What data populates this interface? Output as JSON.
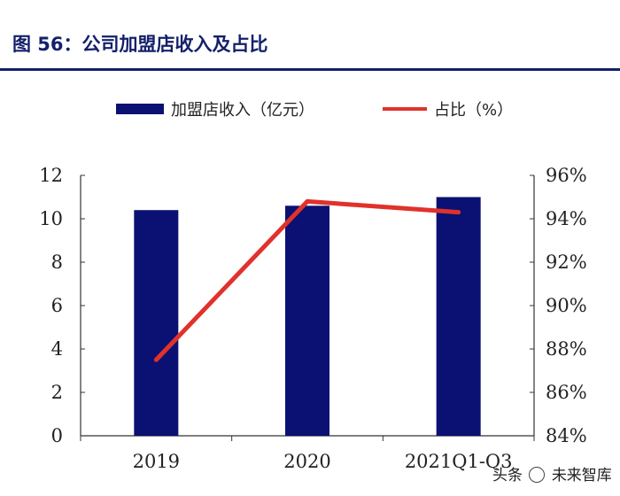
{
  "title": "图 56：公司加盟店收入及占比",
  "watermark": {
    "prefix": "头条",
    "name": "未来智库"
  },
  "chart_data": {
    "type": "bar",
    "categories": [
      "2019",
      "2020",
      "2021Q1-Q3"
    ],
    "series": [
      {
        "name": "加盟店收入（亿元）",
        "type": "bar",
        "axis": "left",
        "values": [
          10.4,
          10.6,
          11.0
        ],
        "color": "#0a1172"
      },
      {
        "name": "占比（%）",
        "type": "line",
        "axis": "right",
        "values": [
          87.5,
          94.8,
          94.3
        ],
        "color": "#e0322b"
      }
    ],
    "y_left": {
      "min": 0,
      "max": 12,
      "ticks": [
        "0",
        "2",
        "4",
        "6",
        "8",
        "10",
        "12"
      ]
    },
    "y_right": {
      "min": 84,
      "max": 96,
      "ticks": [
        "84%",
        "86%",
        "88%",
        "90%",
        "92%",
        "94%",
        "96%"
      ]
    },
    "legend_position": "top",
    "grid": false
  }
}
